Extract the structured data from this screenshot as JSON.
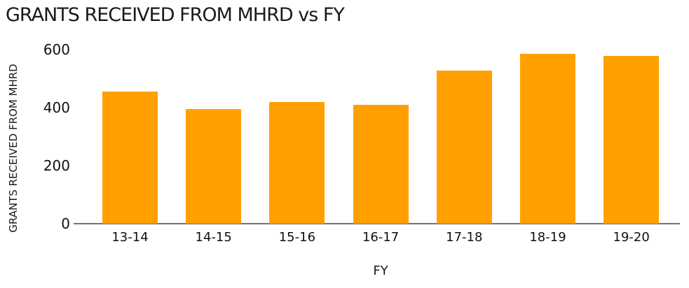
{
  "chart_data": {
    "type": "bar",
    "title": "GRANTS RECEIVED FROM MHRD vs FY",
    "xlabel": "FY",
    "ylabel": "GRANTS RECEIVED FROM MHRD",
    "categories": [
      "13-14",
      "14-15",
      "15-16",
      "16-17",
      "17-18",
      "18-19",
      "19-20"
    ],
    "values": [
      455,
      395,
      420,
      410,
      528,
      585,
      578
    ],
    "ylim": [
      0,
      600
    ],
    "yticks": [
      0,
      200,
      400,
      600
    ],
    "grid": false,
    "legend": "none",
    "colors": {
      "bar": "#FFA000",
      "axis_line": "#737373",
      "text": "#1a1a1a",
      "background": "#ffffff"
    }
  }
}
